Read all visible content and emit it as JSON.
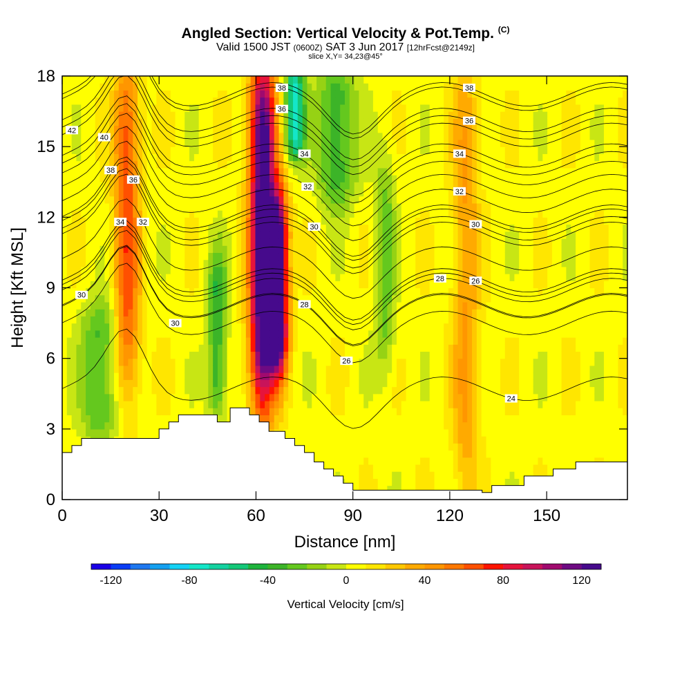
{
  "titles": {
    "main": "Angled Section: Vertical Velocity & Pot.Temp.",
    "copyright": "(C)",
    "valid_prefix": "Valid 1500 JST",
    "valid_utc": "(0600Z)",
    "valid_date": "SAT 3 Jun 2017",
    "forecast": "[12hrFcst@2149z]",
    "slice": "slice X,Y= 34,23@45°"
  },
  "chart_data": {
    "type": "heatmap",
    "title": "Angled Section: Vertical Velocity & Pot.Temp.",
    "xlabel": "Distance [nm]",
    "ylabel": "Height [Kft MSL]",
    "xlim": [
      0,
      175
    ],
    "ylim": [
      0,
      18
    ],
    "x_ticks": [
      "0",
      "30",
      "60",
      "90",
      "120",
      "150"
    ],
    "y_ticks": [
      "0",
      "3",
      "6",
      "9",
      "12",
      "15",
      "18"
    ],
    "colorbar": {
      "label": "Vertical Velocity [cm/s]",
      "ticks": [
        "-120",
        "-80",
        "-40",
        "0",
        "40",
        "80",
        "120"
      ],
      "range": [
        -130,
        130
      ],
      "colors": [
        "#1a00e6",
        "#0a3cf5",
        "#1e78f0",
        "#14a0f0",
        "#14d2f5",
        "#14e6c8",
        "#14d2a0",
        "#14c878",
        "#1eb43c",
        "#3cb428",
        "#64c81e",
        "#96d214",
        "#c8e614",
        "#ffff00",
        "#ffe600",
        "#ffc800",
        "#ffaa00",
        "#ff9600",
        "#ff7800",
        "#ff5000",
        "#ff1400",
        "#e6143c",
        "#c8145a",
        "#a00a6e",
        "#6e0a82",
        "#460a8c"
      ]
    },
    "velocity_features": [
      {
        "x": 62,
        "z_bottom": 4.5,
        "z_top": 18,
        "peak": 130,
        "width": 4
      },
      {
        "x": 67,
        "z_bottom": 6,
        "z_top": 12.5,
        "peak": 120,
        "width": 3
      },
      {
        "x": 20,
        "z_bottom": 5,
        "z_top": 18,
        "peak": 60,
        "width": 4
      },
      {
        "x": 125,
        "z_bottom": 1,
        "z_top": 18,
        "peak": 35,
        "width": 4
      },
      {
        "x": 72,
        "z_bottom": 15,
        "z_top": 18,
        "peak": -80,
        "width": 3
      },
      {
        "x": 85,
        "z_bottom": 13,
        "z_top": 18,
        "peak": -45,
        "width": 6
      },
      {
        "x": 48,
        "z_bottom": 4,
        "z_top": 10,
        "peak": -45,
        "width": 3
      },
      {
        "x": 12,
        "z_bottom": 3,
        "z_top": 8,
        "peak": -40,
        "width": 6
      },
      {
        "x": 100,
        "z_bottom": 6,
        "z_top": 14,
        "peak": -30,
        "width": 3
      }
    ],
    "terrain_top_kft": [
      [
        0,
        2.0
      ],
      [
        3,
        2.3
      ],
      [
        6,
        2.6
      ],
      [
        30,
        3.0
      ],
      [
        33,
        3.3
      ],
      [
        36,
        3.6
      ],
      [
        48,
        3.3
      ],
      [
        52,
        3.9
      ],
      [
        58,
        3.6
      ],
      [
        61,
        3.3
      ],
      [
        64,
        2.9
      ],
      [
        69,
        2.6
      ],
      [
        72,
        2.3
      ],
      [
        75,
        2.0
      ],
      [
        78,
        1.6
      ],
      [
        81,
        1.3
      ],
      [
        84,
        1.0
      ],
      [
        87,
        0.7
      ],
      [
        90,
        0.4
      ],
      [
        130,
        0.3
      ],
      [
        133,
        0.6
      ],
      [
        143,
        1.0
      ],
      [
        152,
        1.3
      ],
      [
        159,
        1.6
      ],
      [
        175,
        1.6
      ]
    ],
    "theta_contour_labels": [
      {
        "text": "42",
        "x": 3,
        "z": 15.7
      },
      {
        "text": "40",
        "x": 13,
        "z": 15.4
      },
      {
        "text": "38",
        "x": 15,
        "z": 14.0
      },
      {
        "text": "36",
        "x": 22,
        "z": 13.6
      },
      {
        "text": "34",
        "x": 18,
        "z": 11.8
      },
      {
        "text": "32",
        "x": 25,
        "z": 11.8
      },
      {
        "text": "30",
        "x": 6,
        "z": 8.7
      },
      {
        "text": "30",
        "x": 35,
        "z": 7.5
      },
      {
        "text": "38",
        "x": 68,
        "z": 17.5
      },
      {
        "text": "36",
        "x": 68,
        "z": 16.6
      },
      {
        "text": "34",
        "x": 75,
        "z": 14.7
      },
      {
        "text": "32",
        "x": 76,
        "z": 13.3
      },
      {
        "text": "30",
        "x": 78,
        "z": 11.6
      },
      {
        "text": "28",
        "x": 75,
        "z": 8.3
      },
      {
        "text": "26",
        "x": 88,
        "z": 5.9
      },
      {
        "text": "38",
        "x": 126,
        "z": 17.5
      },
      {
        "text": "36",
        "x": 126,
        "z": 16.1
      },
      {
        "text": "34",
        "x": 123,
        "z": 14.7
      },
      {
        "text": "32",
        "x": 123,
        "z": 13.1
      },
      {
        "text": "30",
        "x": 128,
        "z": 11.7
      },
      {
        "text": "28",
        "x": 117,
        "z": 9.4
      },
      {
        "text": "26",
        "x": 128,
        "z": 9.3
      },
      {
        "text": "24",
        "x": 139,
        "z": 4.3
      }
    ]
  }
}
